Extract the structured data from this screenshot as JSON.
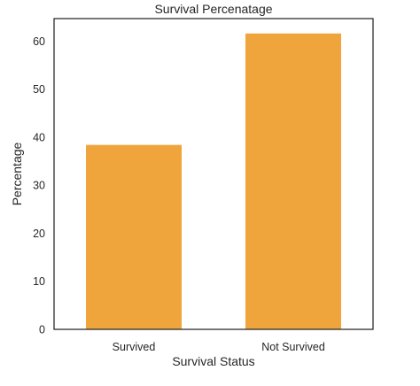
{
  "chart_data": {
    "type": "bar",
    "title": "Survival Percenatage",
    "xlabel": "Survival Status",
    "ylabel": "Percentage",
    "categories": [
      "Survived",
      "Not Survived"
    ],
    "values": [
      38.4,
      61.6
    ],
    "yticks": [
      0,
      10,
      20,
      30,
      40,
      50,
      60
    ],
    "ylim": [
      0,
      64.7
    ],
    "grid": false,
    "legend": "none",
    "bar_color": "#F0A53C",
    "axis_color": "#262626"
  }
}
